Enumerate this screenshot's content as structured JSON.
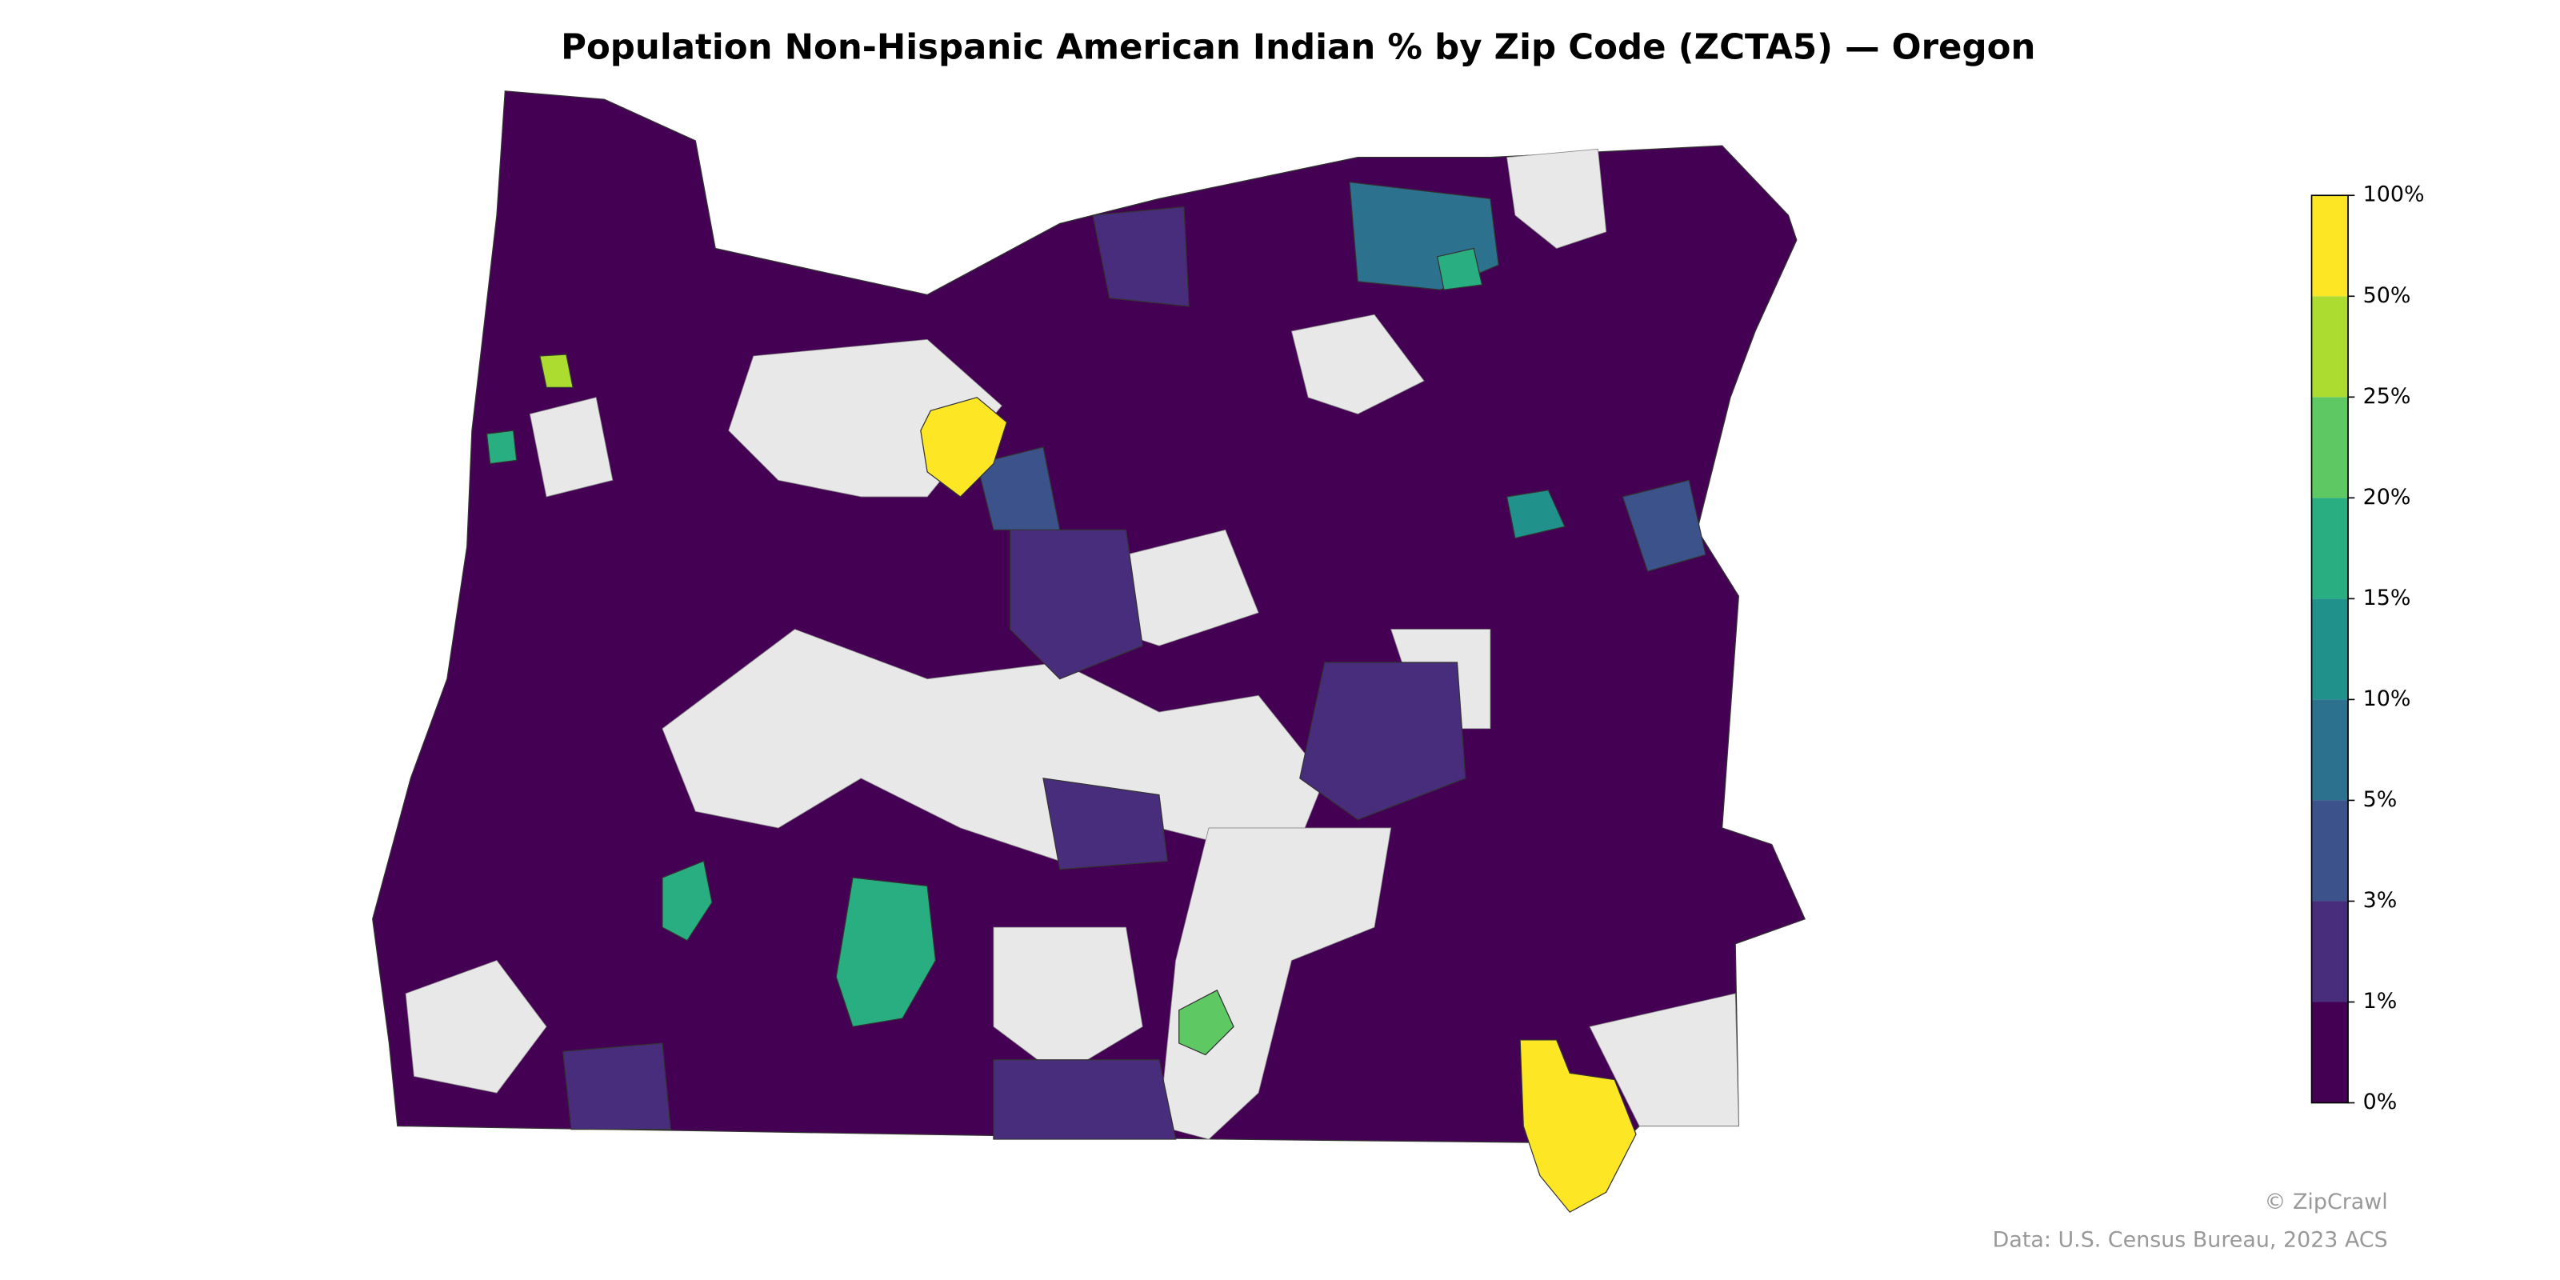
{
  "title": "Population Non-Hispanic American Indian % by Zip Code (ZCTA5) — Oregon",
  "colorbar": {
    "colors": [
      "#440154",
      "#472d7b",
      "#3b528b",
      "#2c728e",
      "#21918c",
      "#28ae80",
      "#5ec962",
      "#addc30",
      "#fde725"
    ],
    "ticks": [
      {
        "value": 0,
        "label": "0%"
      },
      {
        "value": 1,
        "label": "1%"
      },
      {
        "value": 3,
        "label": "3%"
      },
      {
        "value": 5,
        "label": "5%"
      },
      {
        "value": 10,
        "label": "10%"
      },
      {
        "value": 15,
        "label": "15%"
      },
      {
        "value": 20,
        "label": "20%"
      },
      {
        "value": 25,
        "label": "25%"
      },
      {
        "value": 50,
        "label": "50%"
      },
      {
        "value": 100,
        "label": "100%"
      }
    ]
  },
  "credits": {
    "copyright": "© ZipCrawl",
    "source": "Data: U.S. Census Bureau, 2023 ACS"
  }
}
